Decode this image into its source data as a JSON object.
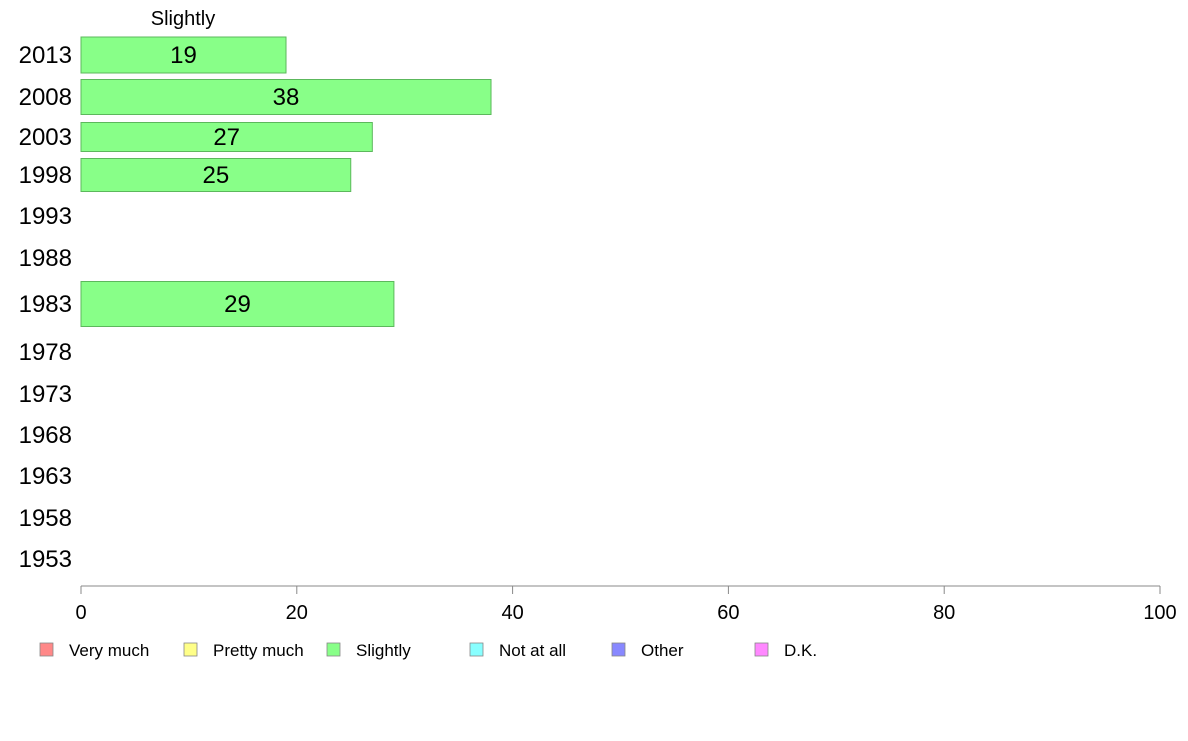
{
  "chart_data": {
    "type": "bar",
    "orientation": "horizontal",
    "series_title": "Slightly",
    "categories": [
      "2013",
      "2008",
      "2003",
      "1998",
      "1993",
      "1988",
      "1983",
      "1978",
      "1973",
      "1968",
      "1963",
      "1958",
      "1953"
    ],
    "series": [
      {
        "name": "Slightly",
        "values": [
          19,
          38,
          27,
          25,
          null,
          null,
          29,
          null,
          null,
          null,
          null,
          null,
          null
        ]
      }
    ],
    "xlim": [
      0,
      100
    ],
    "xticks": [
      0,
      20,
      40,
      60,
      80,
      100
    ],
    "grid": false,
    "legend_position": "bottom",
    "legend": [
      {
        "label": "Very much",
        "color": "#ff8888"
      },
      {
        "label": "Pretty much",
        "color": "#ffff88"
      },
      {
        "label": "Slightly",
        "color": "#88ff88"
      },
      {
        "label": "Not at all",
        "color": "#88ffff"
      },
      {
        "label": "Other",
        "color": "#8888ff"
      },
      {
        "label": "D.K.",
        "color": "#ff88ff"
      }
    ],
    "bar_color": "#88ff88",
    "bar_edge_color": "#5cb85c",
    "axis_color": "#888888"
  }
}
